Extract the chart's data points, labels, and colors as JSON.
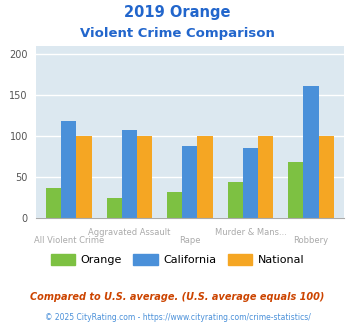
{
  "title_line1": "2019 Orange",
  "title_line2": "Violent Crime Comparison",
  "title_color": "#2266cc",
  "categories": [
    "All Violent Crime",
    "Aggravated Assault",
    "Rape",
    "Murder & Mans...",
    "Robbery"
  ],
  "xtick_top": [
    "",
    "Aggravated Assault",
    "",
    "Murder & Mans...",
    ""
  ],
  "xtick_bottom": [
    "All Violent Crime",
    "",
    "Rape",
    "",
    "Robbery"
  ],
  "series": {
    "Orange": [
      36,
      24,
      31,
      44,
      68
    ],
    "California": [
      118,
      107,
      88,
      86,
      161
    ],
    "National": [
      100,
      100,
      100,
      100,
      100
    ]
  },
  "colors": {
    "Orange": "#7dc142",
    "California": "#4a90d9",
    "National": "#f5a623"
  },
  "ylim": [
    0,
    210
  ],
  "yticks": [
    0,
    50,
    100,
    150,
    200
  ],
  "background_color": "#dce8f0",
  "grid_color": "#ffffff",
  "footnote1": "Compared to U.S. average. (U.S. average equals 100)",
  "footnote2": "© 2025 CityRating.com - https://www.cityrating.com/crime-statistics/",
  "footnote1_color": "#cc4400",
  "footnote2_color": "#4a90d9",
  "xtick_color": "#aaaaaa"
}
